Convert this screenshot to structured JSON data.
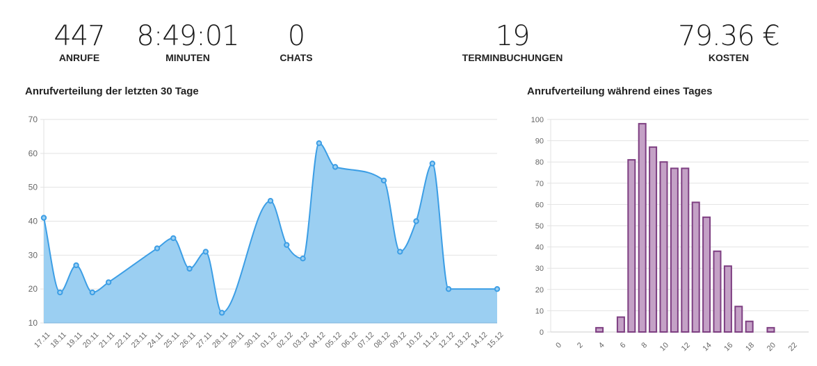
{
  "kpis": [
    {
      "value": "447",
      "label": "ANRUFE"
    },
    {
      "value": "8:49:01",
      "label": "MINUTEN"
    },
    {
      "value": "0",
      "label": "CHATS"
    },
    {
      "value": "19",
      "label": "TERMINBUCHUNGEN"
    },
    {
      "value": "79.36 €",
      "label": "KOSTEN"
    }
  ],
  "panels": {
    "left_title": "Anrufverteilung der letzten 30 Tage",
    "right_title": "Anrufverteilung während eines Tages"
  },
  "colors": {
    "line": "#3c9ee5",
    "area": "#9bcff2",
    "bar_fill": "#c4a1c6",
    "bar_border": "#7e3f82",
    "grid": "#e2e2e2",
    "tick_text": "#666666"
  },
  "chart_data": [
    {
      "type": "line",
      "title": "Anrufverteilung der letzten 30 Tage",
      "xlabel": "",
      "ylabel": "",
      "ylim": [
        10,
        70
      ],
      "yticks": [
        10,
        20,
        30,
        40,
        50,
        60,
        70
      ],
      "grid": true,
      "fill": true,
      "categories": [
        "17.11",
        "18.11",
        "19.11",
        "20.11",
        "21.11",
        "22.11",
        "23.11",
        "24.11",
        "25.11",
        "26.11",
        "27.11",
        "28.11",
        "29.11",
        "30.11",
        "01.12",
        "02.12",
        "03.12",
        "04.12",
        "05.12",
        "06.12",
        "07.12",
        "08.12",
        "09.12",
        "10.12",
        "11.12",
        "12.12",
        "13.12",
        "14.12",
        "15.12"
      ],
      "series": [
        {
          "name": "Anrufe",
          "values": [
            41,
            19,
            27,
            19,
            22,
            null,
            null,
            32,
            35,
            26,
            31,
            13,
            null,
            null,
            46,
            33,
            29,
            63,
            56,
            null,
            null,
            52,
            31,
            40,
            57,
            20,
            null,
            null,
            20
          ]
        }
      ]
    },
    {
      "type": "bar",
      "title": "Anrufverteilung während eines Tages",
      "xlabel": "",
      "ylabel": "",
      "ylim": [
        0,
        100
      ],
      "yticks": [
        0,
        10,
        20,
        30,
        40,
        50,
        60,
        70,
        80,
        90,
        100
      ],
      "xticks": [
        0,
        2,
        4,
        6,
        8,
        10,
        12,
        14,
        16,
        18,
        20,
        22
      ],
      "grid": true,
      "categories": [
        0,
        1,
        2,
        3,
        4,
        5,
        6,
        7,
        8,
        9,
        10,
        11,
        12,
        13,
        14,
        15,
        16,
        17,
        18,
        19,
        20,
        21,
        22,
        23
      ],
      "series": [
        {
          "name": "Anrufe",
          "values": [
            0,
            0,
            0,
            0,
            2,
            0,
            7,
            81,
            98,
            87,
            80,
            77,
            77,
            61,
            54,
            38,
            31,
            12,
            5,
            0,
            2,
            0,
            0,
            0
          ]
        }
      ]
    }
  ]
}
